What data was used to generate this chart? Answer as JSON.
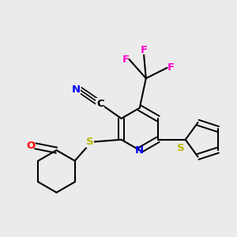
{
  "bg_color": "#ebebeb",
  "colors": {
    "N": "#0000ff",
    "S": "#b8b800",
    "O": "#ff0000",
    "F": "#ff00cc",
    "C": "#000000",
    "bond": "#000000"
  },
  "font_size": 9.5
}
